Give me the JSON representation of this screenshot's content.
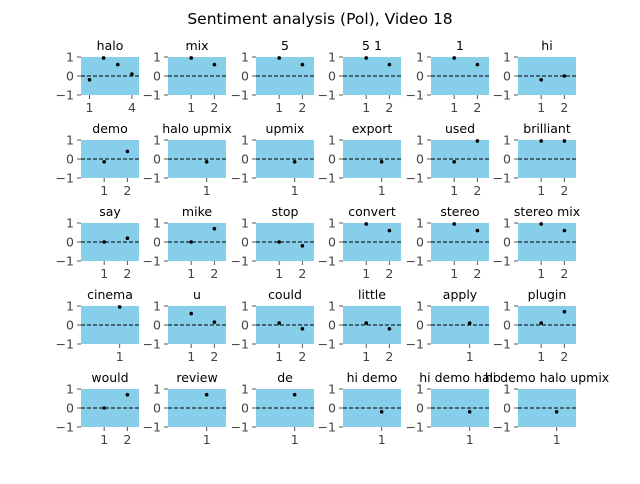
{
  "chart_data": {
    "type": "scatter",
    "title": "Sentiment analysis (Pol), Video 18",
    "grid_rows": 5,
    "grid_cols": 6,
    "ylim": [
      -1,
      1
    ],
    "yticks": [
      "−1",
      "0",
      "1"
    ],
    "reference_line": {
      "y": 0,
      "style": "dashed"
    },
    "background_color": "#87ceeb",
    "point_color": "#000000",
    "grid": false,
    "panels": [
      {
        "title": "halo",
        "xlim": [
          0.4,
          4.5
        ],
        "xticks": [
          1,
          4
        ],
        "x": [
          1,
          2,
          3,
          4
        ],
        "y": [
          -0.2,
          0.95,
          0.6,
          0.1
        ]
      },
      {
        "title": "mix",
        "xlim": [
          0.0,
          2.5
        ],
        "xticks": [
          1,
          2
        ],
        "x": [
          1,
          2
        ],
        "y": [
          0.95,
          0.6
        ]
      },
      {
        "title": "5",
        "xlim": [
          0.0,
          2.5
        ],
        "xticks": [
          1,
          2
        ],
        "x": [
          1,
          2
        ],
        "y": [
          0.95,
          0.6
        ]
      },
      {
        "title": "5 1",
        "xlim": [
          0.0,
          2.5
        ],
        "xticks": [
          1,
          2
        ],
        "x": [
          1,
          2
        ],
        "y": [
          0.95,
          0.6
        ]
      },
      {
        "title": "1",
        "xlim": [
          0.0,
          2.5
        ],
        "xticks": [
          1,
          2
        ],
        "x": [
          1,
          2
        ],
        "y": [
          0.95,
          0.6
        ]
      },
      {
        "title": "hi",
        "xlim": [
          0.0,
          2.5
        ],
        "xticks": [
          1,
          2
        ],
        "x": [
          1,
          2
        ],
        "y": [
          -0.2,
          0.0
        ]
      },
      {
        "title": "demo",
        "xlim": [
          0.0,
          2.5
        ],
        "xticks": [
          1,
          2
        ],
        "x": [
          1,
          2
        ],
        "y": [
          -0.15,
          0.4
        ]
      },
      {
        "title": "halo upmix",
        "xlim": [
          0.0,
          1.5
        ],
        "xticks": [
          1
        ],
        "x": [
          1
        ],
        "y": [
          -0.15
        ]
      },
      {
        "title": "upmix",
        "xlim": [
          0.0,
          1.5
        ],
        "xticks": [
          1
        ],
        "x": [
          1
        ],
        "y": [
          -0.15
        ]
      },
      {
        "title": "export",
        "xlim": [
          0.0,
          1.5
        ],
        "xticks": [
          1
        ],
        "x": [
          1
        ],
        "y": [
          -0.15
        ]
      },
      {
        "title": "used",
        "xlim": [
          0.0,
          2.5
        ],
        "xticks": [
          1,
          2
        ],
        "x": [
          1,
          2
        ],
        "y": [
          -0.15,
          0.95
        ]
      },
      {
        "title": "brilliant",
        "xlim": [
          0.0,
          2.5
        ],
        "xticks": [
          1,
          2
        ],
        "x": [
          1,
          2
        ],
        "y": [
          0.95,
          0.95
        ]
      },
      {
        "title": "say",
        "xlim": [
          0.0,
          2.5
        ],
        "xticks": [
          1,
          2
        ],
        "x": [
          1,
          2
        ],
        "y": [
          0.0,
          0.2
        ]
      },
      {
        "title": "mike",
        "xlim": [
          0.0,
          2.5
        ],
        "xticks": [
          1,
          2
        ],
        "x": [
          1,
          2
        ],
        "y": [
          0.0,
          0.7
        ]
      },
      {
        "title": "stop",
        "xlim": [
          0.0,
          2.5
        ],
        "xticks": [
          1,
          2
        ],
        "x": [
          1,
          2
        ],
        "y": [
          0.0,
          -0.2
        ]
      },
      {
        "title": "convert",
        "xlim": [
          0.0,
          2.5
        ],
        "xticks": [
          1,
          2
        ],
        "x": [
          1,
          2
        ],
        "y": [
          0.95,
          0.6
        ]
      },
      {
        "title": "stereo",
        "xlim": [
          0.0,
          2.5
        ],
        "xticks": [
          1,
          2
        ],
        "x": [
          1,
          2
        ],
        "y": [
          0.95,
          0.6
        ]
      },
      {
        "title": "stereo mix",
        "xlim": [
          0.0,
          2.5
        ],
        "xticks": [
          1,
          2
        ],
        "x": [
          1,
          2
        ],
        "y": [
          0.95,
          0.6
        ]
      },
      {
        "title": "cinema",
        "xlim": [
          0.0,
          1.5
        ],
        "xticks": [
          1
        ],
        "x": [
          1
        ],
        "y": [
          0.95
        ]
      },
      {
        "title": "u",
        "xlim": [
          0.0,
          2.5
        ],
        "xticks": [
          1,
          2
        ],
        "x": [
          1,
          2
        ],
        "y": [
          0.6,
          0.15
        ]
      },
      {
        "title": "could",
        "xlim": [
          0.0,
          2.5
        ],
        "xticks": [
          1,
          2
        ],
        "x": [
          1,
          2
        ],
        "y": [
          0.1,
          -0.2
        ]
      },
      {
        "title": "little",
        "xlim": [
          0.0,
          2.5
        ],
        "xticks": [
          1,
          2
        ],
        "x": [
          1,
          2
        ],
        "y": [
          0.1,
          -0.2
        ]
      },
      {
        "title": "apply",
        "xlim": [
          0.0,
          1.5
        ],
        "xticks": [
          1
        ],
        "x": [
          1
        ],
        "y": [
          0.1
        ]
      },
      {
        "title": "plugin",
        "xlim": [
          0.0,
          2.5
        ],
        "xticks": [
          1,
          2
        ],
        "x": [
          1,
          2
        ],
        "y": [
          0.1,
          0.7
        ]
      },
      {
        "title": "would",
        "xlim": [
          0.0,
          2.5
        ],
        "xticks": [
          1,
          2
        ],
        "x": [
          1,
          2
        ],
        "y": [
          0.0,
          0.7
        ]
      },
      {
        "title": "review",
        "xlim": [
          0.0,
          1.5
        ],
        "xticks": [
          1
        ],
        "x": [
          1
        ],
        "y": [
          0.7
        ]
      },
      {
        "title": "de",
        "xlim": [
          0.0,
          1.5
        ],
        "xticks": [
          1
        ],
        "x": [
          1
        ],
        "y": [
          0.7
        ]
      },
      {
        "title": "hi demo",
        "xlim": [
          0.0,
          1.5
        ],
        "xticks": [
          1
        ],
        "x": [
          1
        ],
        "y": [
          -0.2
        ]
      },
      {
        "title": "hi demo halo",
        "xlim": [
          0.0,
          1.5
        ],
        "xticks": [
          1
        ],
        "x": [
          1
        ],
        "y": [
          -0.2
        ]
      },
      {
        "title": "hi demo halo upmix",
        "xlim": [
          0.0,
          1.5
        ],
        "xticks": [
          1
        ],
        "x": [
          1
        ],
        "y": [
          -0.2
        ]
      }
    ]
  }
}
